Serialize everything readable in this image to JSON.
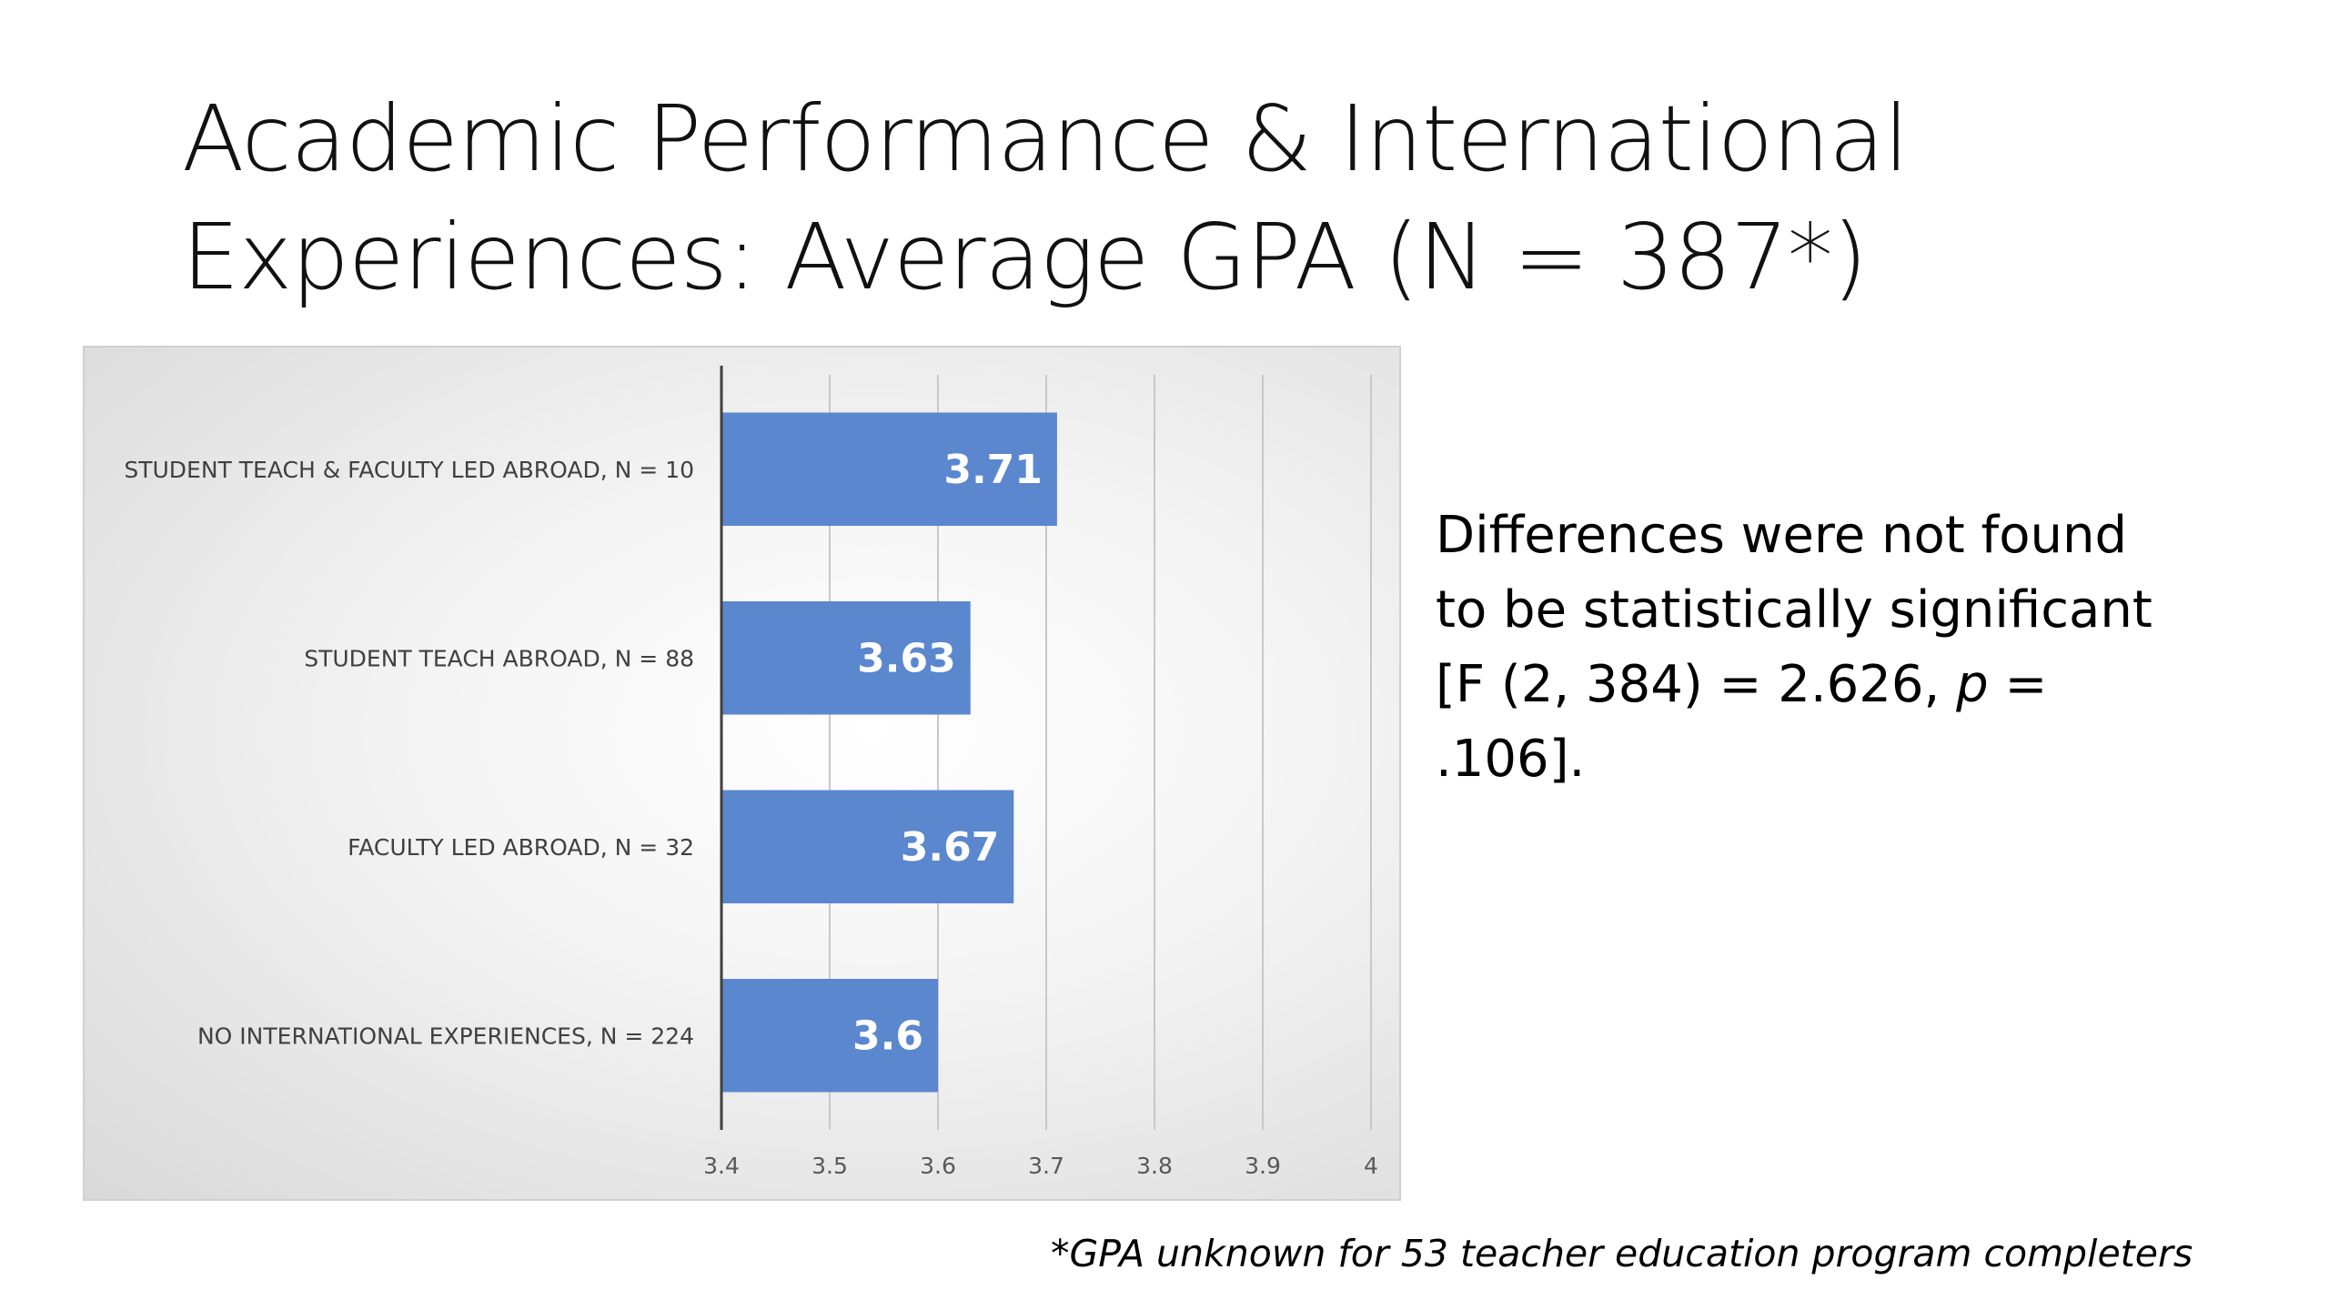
{
  "slide": {
    "title_line1": "Academic Performance & International",
    "title_line2": "Experiences: Average GPA (N = 387*)",
    "note_part1": "Differences were not found to be statistically significant [F (2, 384) = 2.626, ",
    "note_italic": "p",
    "note_part2": " = .106].",
    "footnote": "*GPA unknown for 53 teacher education program completers"
  },
  "colors": {
    "bar": "#5B87CE",
    "bar_label": "#ffffff",
    "gridline": "#c8c8c8",
    "axis": "#404040",
    "tick_text": "#595959"
  },
  "chart_data": {
    "type": "bar",
    "orientation": "horizontal",
    "title": "",
    "xlabel": "",
    "ylabel": "",
    "categories": [
      "STUDENT TEACH & FACULTY LED ABROAD, N = 10",
      "STUDENT TEACH ABROAD, N = 88",
      "FACULTY LED ABROAD, N = 32",
      "NO INTERNATIONAL EXPERIENCES, N = 224"
    ],
    "values": [
      3.71,
      3.63,
      3.67,
      3.6
    ],
    "data_labels": [
      "3.71",
      "3.63",
      "3.67",
      "3.6"
    ],
    "xlim": [
      3.4,
      4
    ],
    "ticks": [
      3.4,
      3.5,
      3.6,
      3.7,
      3.8,
      3.9,
      4
    ],
    "tick_labels": [
      "3.4",
      "3.5",
      "3.6",
      "3.7",
      "3.8",
      "3.9",
      "4"
    ],
    "grid": true,
    "legend": "none"
  }
}
